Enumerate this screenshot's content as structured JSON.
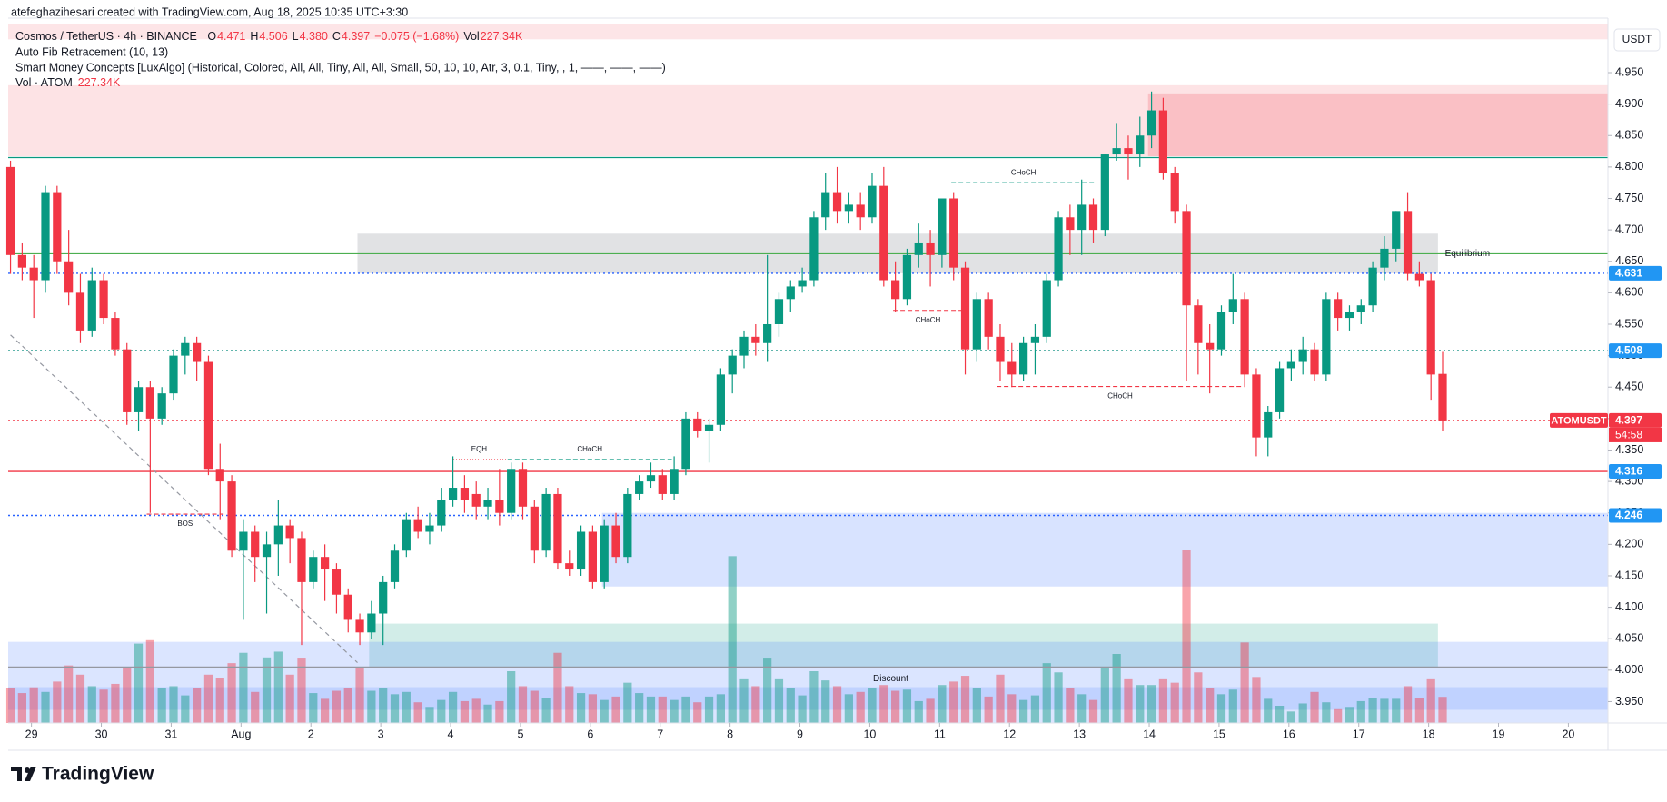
{
  "header": {
    "created": "atefeghazihesari created with TradingView.com, Aug 18, 2025 10:35 UTC+3:30",
    "currency": "USDT",
    "logo": "TradingView"
  },
  "legend": {
    "symbol": "Cosmos / TetherUS · 4h · BINANCE",
    "ohlc": [
      {
        "key": "O",
        "value": "4.471"
      },
      {
        "key": "H",
        "value": "4.506"
      },
      {
        "key": "L",
        "value": "4.380"
      },
      {
        "key": "C",
        "value": "4.397"
      }
    ],
    "change": "−0.075 (−1.68%)",
    "vol_key": "Vol",
    "vol_value": "227.34K",
    "indicators": [
      "Auto Fib Retracement (10, 13)",
      "Smart Money Concepts [LuxAlgo] (Historical, Colored, All, All, Tiny, All, All, Small, 50, 10, 10, Atr, 3, 0.1, Tiny, , 1, ——, ——, ——)"
    ],
    "vol_indicator": {
      "name": "Vol · ATOM",
      "value": "227.34K"
    }
  },
  "chart_data": {
    "type": "candlestick",
    "up_color": "#089981",
    "down_color": "#f23645",
    "xlim": [
      -0.2,
      137.2
    ],
    "ylim": [
      3.916,
      5.028
    ],
    "xticks": [
      {
        "value": 1.8,
        "label": "29"
      },
      {
        "value": 7.8,
        "label": "30"
      },
      {
        "value": 13.8,
        "label": "31"
      },
      {
        "value": 19.8,
        "label": "Aug"
      },
      {
        "value": 25.8,
        "label": "2"
      },
      {
        "value": 31.8,
        "label": "3"
      },
      {
        "value": 37.8,
        "label": "4"
      },
      {
        "value": 43.8,
        "label": "5"
      },
      {
        "value": 49.8,
        "label": "6"
      },
      {
        "value": 55.8,
        "label": "7"
      },
      {
        "value": 61.8,
        "label": "8"
      },
      {
        "value": 67.8,
        "label": "9"
      },
      {
        "value": 73.8,
        "label": "10"
      },
      {
        "value": 79.8,
        "label": "11"
      },
      {
        "value": 85.8,
        "label": "12"
      },
      {
        "value": 91.8,
        "label": "13"
      },
      {
        "value": 97.8,
        "label": "14"
      },
      {
        "value": 103.8,
        "label": "15"
      },
      {
        "value": 109.8,
        "label": "16"
      },
      {
        "value": 115.8,
        "label": "17"
      },
      {
        "value": 121.8,
        "label": "18"
      },
      {
        "value": 127.8,
        "label": "19"
      },
      {
        "value": 133.8,
        "label": "20"
      }
    ],
    "yticks": [
      {
        "value": 3.95,
        "label": "3.950"
      },
      {
        "value": 4.0,
        "label": "4.000"
      },
      {
        "value": 4.05,
        "label": "4.050"
      },
      {
        "value": 4.1,
        "label": "4.100"
      },
      {
        "value": 4.15,
        "label": "4.150"
      },
      {
        "value": 4.2,
        "label": "4.200"
      },
      {
        "value": 4.25,
        "label": "4.250"
      },
      {
        "value": 4.3,
        "label": "4.300"
      },
      {
        "value": 4.35,
        "label": "4.350"
      },
      {
        "value": 4.4,
        "label": "4.400"
      },
      {
        "value": 4.45,
        "label": "4.450"
      },
      {
        "value": 4.5,
        "label": "4.500"
      },
      {
        "value": 4.55,
        "label": "4.550"
      },
      {
        "value": 4.6,
        "label": "4.600"
      },
      {
        "value": 4.65,
        "label": "4.650"
      },
      {
        "value": 4.7,
        "label": "4.700"
      },
      {
        "value": 4.75,
        "label": "4.750"
      },
      {
        "value": 4.8,
        "label": "4.800"
      },
      {
        "value": 4.85,
        "label": "4.850"
      },
      {
        "value": 4.9,
        "label": "4.900"
      },
      {
        "value": 4.95,
        "label": "4.950"
      }
    ],
    "candles": [
      [
        4.8,
        4.81,
        4.63,
        4.66,
        300
      ],
      [
        4.66,
        4.68,
        4.62,
        4.64,
        260
      ],
      [
        4.64,
        4.66,
        4.56,
        4.62,
        310
      ],
      [
        4.62,
        4.77,
        4.6,
        4.76,
        270
      ],
      [
        4.76,
        4.77,
        4.63,
        4.65,
        360
      ],
      [
        4.65,
        4.7,
        4.58,
        4.6,
        500
      ],
      [
        4.6,
        4.63,
        4.52,
        4.54,
        420
      ],
      [
        4.54,
        4.64,
        4.53,
        4.62,
        320
      ],
      [
        4.62,
        4.63,
        4.55,
        4.56,
        290
      ],
      [
        4.56,
        4.57,
        4.5,
        4.51,
        340
      ],
      [
        4.51,
        4.52,
        4.39,
        4.41,
        480
      ],
      [
        4.41,
        4.46,
        4.38,
        4.45,
        690
      ],
      [
        4.45,
        4.46,
        4.25,
        4.4,
        720
      ],
      [
        4.4,
        4.45,
        4.39,
        4.44,
        300
      ],
      [
        4.44,
        4.51,
        4.43,
        4.5,
        320
      ],
      [
        4.5,
        4.53,
        4.47,
        4.52,
        240
      ],
      [
        4.52,
        4.53,
        4.46,
        4.49,
        300
      ],
      [
        4.49,
        4.5,
        4.31,
        4.32,
        420
      ],
      [
        4.32,
        4.36,
        4.24,
        4.3,
        390
      ],
      [
        4.3,
        4.31,
        4.18,
        4.19,
        520
      ],
      [
        4.19,
        4.24,
        4.08,
        4.22,
        610
      ],
      [
        4.22,
        4.23,
        4.14,
        4.18,
        270
      ],
      [
        4.18,
        4.22,
        4.09,
        4.2,
        570
      ],
      [
        4.2,
        4.27,
        4.15,
        4.23,
        620
      ],
      [
        4.23,
        4.24,
        4.17,
        4.21,
        420
      ],
      [
        4.21,
        4.22,
        4.04,
        4.14,
        560
      ],
      [
        4.14,
        4.19,
        4.13,
        4.18,
        260
      ],
      [
        4.18,
        4.2,
        4.11,
        4.16,
        210
      ],
      [
        4.16,
        4.17,
        4.09,
        4.12,
        280
      ],
      [
        4.12,
        4.13,
        4.06,
        4.08,
        300
      ],
      [
        4.08,
        4.09,
        4.04,
        4.06,
        480
      ],
      [
        4.06,
        4.11,
        4.05,
        4.09,
        280
      ],
      [
        4.09,
        4.15,
        4.04,
        4.14,
        300
      ],
      [
        4.14,
        4.2,
        4.13,
        4.19,
        250
      ],
      [
        4.19,
        4.25,
        4.18,
        4.24,
        270
      ],
      [
        4.24,
        4.26,
        4.21,
        4.22,
        180
      ],
      [
        4.22,
        4.25,
        4.2,
        4.23,
        140
      ],
      [
        4.23,
        4.29,
        4.22,
        4.27,
        200
      ],
      [
        4.27,
        4.34,
        4.26,
        4.29,
        270
      ],
      [
        4.29,
        4.31,
        4.25,
        4.27,
        190
      ],
      [
        4.28,
        4.3,
        4.24,
        4.26,
        210
      ],
      [
        4.26,
        4.29,
        4.24,
        4.27,
        160
      ],
      [
        4.27,
        4.32,
        4.23,
        4.25,
        190
      ],
      [
        4.25,
        4.33,
        4.24,
        4.32,
        450
      ],
      [
        4.32,
        4.33,
        4.24,
        4.26,
        320
      ],
      [
        4.26,
        4.27,
        4.17,
        4.19,
        280
      ],
      [
        4.19,
        4.29,
        4.18,
        4.28,
        220
      ],
      [
        4.28,
        4.29,
        4.16,
        4.17,
        610
      ],
      [
        4.17,
        4.19,
        4.15,
        4.16,
        320
      ],
      [
        4.16,
        4.23,
        4.15,
        4.22,
        260
      ],
      [
        4.22,
        4.23,
        4.13,
        4.14,
        250
      ],
      [
        4.14,
        4.24,
        4.13,
        4.23,
        200
      ],
      [
        4.23,
        4.25,
        4.17,
        4.18,
        230
      ],
      [
        4.18,
        4.29,
        4.17,
        4.28,
        350
      ],
      [
        4.28,
        4.31,
        4.27,
        4.3,
        260
      ],
      [
        4.3,
        4.33,
        4.29,
        4.31,
        230
      ],
      [
        4.31,
        4.32,
        4.27,
        4.28,
        230
      ],
      [
        4.28,
        4.34,
        4.27,
        4.32,
        200
      ],
      [
        4.32,
        4.41,
        4.31,
        4.4,
        230
      ],
      [
        4.4,
        4.41,
        4.37,
        4.38,
        180
      ],
      [
        4.38,
        4.4,
        4.33,
        4.39,
        230
      ],
      [
        4.39,
        4.48,
        4.38,
        4.47,
        250
      ],
      [
        4.47,
        4.51,
        4.44,
        4.5,
        1450
      ],
      [
        4.5,
        4.54,
        4.48,
        4.53,
        380
      ],
      [
        4.53,
        4.55,
        4.5,
        4.52,
        320
      ],
      [
        4.52,
        4.66,
        4.49,
        4.55,
        560
      ],
      [
        4.55,
        4.6,
        4.53,
        4.59,
        380
      ],
      [
        4.59,
        4.62,
        4.57,
        4.61,
        300
      ],
      [
        4.61,
        4.64,
        4.6,
        4.62,
        240
      ],
      [
        4.62,
        4.73,
        4.61,
        4.72,
        450
      ],
      [
        4.72,
        4.79,
        4.7,
        4.76,
        370
      ],
      [
        4.76,
        4.8,
        4.71,
        4.73,
        320
      ],
      [
        4.73,
        4.76,
        4.71,
        4.74,
        250
      ],
      [
        4.74,
        4.76,
        4.7,
        4.72,
        270
      ],
      [
        4.72,
        4.79,
        4.71,
        4.77,
        300
      ],
      [
        4.77,
        4.8,
        4.61,
        4.62,
        330
      ],
      [
        4.62,
        4.65,
        4.57,
        4.59,
        280
      ],
      [
        4.59,
        4.67,
        4.58,
        4.66,
        290
      ],
      [
        4.66,
        4.71,
        4.64,
        4.68,
        190
      ],
      [
        4.68,
        4.7,
        4.61,
        4.66,
        210
      ],
      [
        4.66,
        4.75,
        4.64,
        4.75,
        330
      ],
      [
        4.75,
        4.76,
        4.62,
        4.64,
        360
      ],
      [
        4.64,
        4.65,
        4.47,
        4.51,
        410
      ],
      [
        4.51,
        4.6,
        4.49,
        4.59,
        300
      ],
      [
        4.59,
        4.6,
        4.51,
        4.53,
        230
      ],
      [
        4.53,
        4.55,
        4.46,
        4.49,
        420
      ],
      [
        4.49,
        4.52,
        4.45,
        4.47,
        250
      ],
      [
        4.47,
        4.53,
        4.46,
        4.52,
        200
      ],
      [
        4.52,
        4.55,
        4.47,
        4.53,
        240
      ],
      [
        4.53,
        4.63,
        4.52,
        4.62,
        520
      ],
      [
        4.62,
        4.73,
        4.61,
        4.72,
        440
      ],
      [
        4.72,
        4.74,
        4.66,
        4.7,
        300
      ],
      [
        4.7,
        4.78,
        4.66,
        4.74,
        250
      ],
      [
        4.74,
        4.75,
        4.68,
        4.7,
        200
      ],
      [
        4.7,
        4.82,
        4.69,
        4.82,
        480
      ],
      [
        4.82,
        4.87,
        4.81,
        4.83,
        600
      ],
      [
        4.83,
        4.85,
        4.78,
        4.82,
        380
      ],
      [
        4.82,
        4.88,
        4.8,
        4.85,
        330
      ],
      [
        4.85,
        4.92,
        4.83,
        4.89,
        330
      ],
      [
        4.89,
        4.91,
        4.78,
        4.79,
        380
      ],
      [
        4.79,
        4.8,
        4.71,
        4.73,
        350
      ],
      [
        4.73,
        4.74,
        4.46,
        4.58,
        1500
      ],
      [
        4.58,
        4.59,
        4.47,
        4.52,
        440
      ],
      [
        4.52,
        4.55,
        4.44,
        4.51,
        300
      ],
      [
        4.51,
        4.58,
        4.5,
        4.57,
        250
      ],
      [
        4.57,
        4.63,
        4.55,
        4.59,
        290
      ],
      [
        4.59,
        4.6,
        4.45,
        4.47,
        700
      ],
      [
        4.47,
        4.48,
        4.34,
        4.37,
        400
      ],
      [
        4.37,
        4.42,
        4.34,
        4.41,
        210
      ],
      [
        4.41,
        4.49,
        4.4,
        4.48,
        150
      ],
      [
        4.48,
        4.51,
        4.46,
        4.49,
        100
      ],
      [
        4.49,
        4.53,
        4.47,
        4.51,
        170
      ],
      [
        4.51,
        4.52,
        4.46,
        4.47,
        270
      ],
      [
        4.47,
        4.6,
        4.46,
        4.59,
        180
      ],
      [
        4.59,
        4.6,
        4.54,
        4.56,
        120
      ],
      [
        4.56,
        4.58,
        4.54,
        4.57,
        140
      ],
      [
        4.57,
        4.59,
        4.55,
        4.58,
        190
      ],
      [
        4.58,
        4.65,
        4.57,
        4.64,
        220
      ],
      [
        4.64,
        4.69,
        4.62,
        4.67,
        210
      ],
      [
        4.67,
        4.73,
        4.65,
        4.73,
        210
      ],
      [
        4.73,
        4.76,
        4.62,
        4.63,
        320
      ],
      [
        4.63,
        4.65,
        4.61,
        4.62,
        220
      ],
      [
        4.62,
        4.63,
        4.43,
        4.47,
        380
      ],
      [
        4.471,
        4.506,
        4.38,
        4.397,
        227.34
      ]
    ],
    "zones": [
      {
        "x": [
          -0.2,
          137.2
        ],
        "y": [
          5.003,
          5.028
        ],
        "color": "rgba(242,54,69,0.13)"
      },
      {
        "x": [
          -0.2,
          137.2
        ],
        "y": [
          4.817,
          4.93
        ],
        "color": "rgba(242,54,69,0.14)"
      },
      {
        "x": [
          97.7,
          137.2
        ],
        "y": [
          4.817,
          4.917
        ],
        "color": "rgba(242,54,69,0.2)"
      },
      {
        "x": [
          29.8,
          122.6
        ],
        "y": [
          4.631,
          4.694
        ],
        "color": "rgba(120,123,134,0.22)"
      },
      {
        "x": [
          50.8,
          137.2
        ],
        "y": [
          4.133,
          4.25
        ],
        "color": "rgba(41,98,255,0.18)"
      },
      {
        "x": [
          30.8,
          122.6
        ],
        "y": [
          4.005,
          4.074
        ],
        "color": "rgba(8,153,129,0.18)"
      },
      {
        "x": [
          -0.2,
          137.2
        ],
        "y": [
          3.916,
          4.045
        ],
        "color": "rgba(41,98,255,0.17)"
      },
      {
        "x": [
          -0.2,
          137.2
        ],
        "y": [
          3.937,
          3.973
        ],
        "color": "rgba(41,98,255,0.15)"
      }
    ],
    "lines": [
      {
        "value": 4.815,
        "color": "#089981"
      },
      {
        "value": 4.662,
        "color": "#4caf50"
      },
      {
        "value": 4.005,
        "color": "#9598a1"
      }
    ],
    "levels": [
      {
        "value": 4.631,
        "color": "#2962ff",
        "tag_color": "#2196f3",
        "style": "dotted"
      },
      {
        "value": 4.508,
        "color": "#00897b",
        "tag_color": "#2196f3",
        "style": "dotted"
      },
      {
        "value": 4.397,
        "color": "#f23645",
        "tag_color": "#f23645",
        "style": "dotted"
      },
      {
        "value": 4.316,
        "color": "#f23645",
        "tag_color": "#2196f3",
        "style": "solid"
      },
      {
        "value": 4.246,
        "color": "#2962ff",
        "tag_color": "#2196f3",
        "style": "dotted"
      }
    ],
    "structures": [
      {
        "label": "BOS",
        "price": 4.248,
        "x": [
          11.7,
          18.3
        ],
        "color": "#f23645",
        "label_pos": "below"
      },
      {
        "label": "EQH",
        "price": 4.335,
        "x": [
          37.8,
          42.7
        ],
        "color": "#f23645",
        "label_pos": "above"
      },
      {
        "label": "CHoCH",
        "price": 4.335,
        "x": [
          42.7,
          56.8
        ],
        "color": "#089981",
        "label_pos": "above"
      },
      {
        "label": "CHoCH",
        "price": 4.775,
        "x": [
          80.8,
          93.2
        ],
        "color": "#089981",
        "label_pos": "above"
      },
      {
        "label": "CHoCH",
        "price": 4.572,
        "x": [
          75.8,
          81.8
        ],
        "color": "#f23645",
        "label_pos": "below"
      },
      {
        "label": "CHoCH",
        "price": 4.451,
        "x": [
          84.7,
          105.9
        ],
        "color": "#f23645",
        "label_pos": "below"
      }
    ],
    "trendlines": [
      {
        "from": [
          0,
          4.533
        ],
        "to": [
          29.8,
          4.012
        ],
        "color": "#9598a1"
      }
    ],
    "annotations": [
      {
        "text": "Equilibrium",
        "x": 123.2,
        "y": 4.662,
        "color": "#9598a1"
      },
      {
        "text": "Discount",
        "x": 75.6,
        "y": 3.986,
        "color": "#089981"
      }
    ],
    "symbol_tag": "ATOMUSDT",
    "countdown": "54:58"
  }
}
